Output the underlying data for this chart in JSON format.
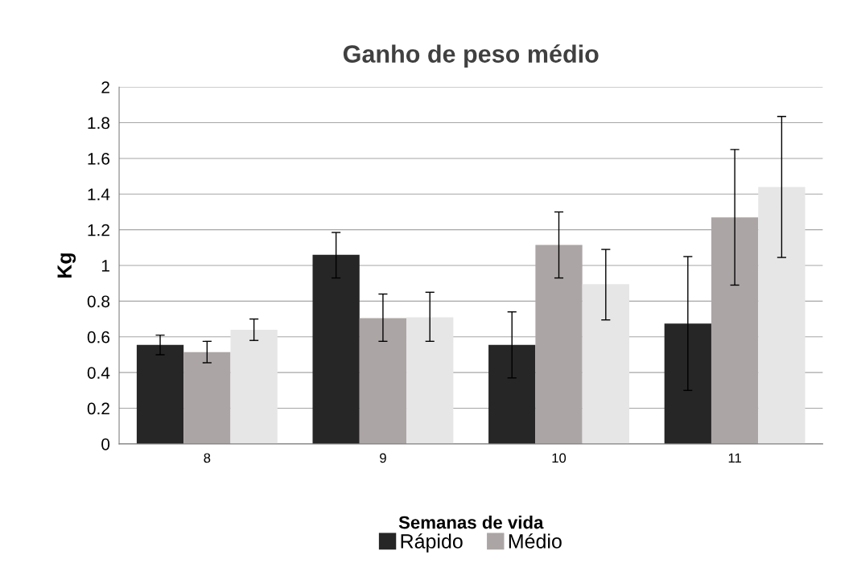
{
  "chart_data": {
    "type": "bar",
    "title": "Ganho de peso médio",
    "xlabel": "Semanas de vida",
    "ylabel": "Kg",
    "categories": [
      "8",
      "9",
      "10",
      "11"
    ],
    "series": [
      {
        "name": "Rápido",
        "color": "#262626",
        "values": [
          0.555,
          1.06,
          0.555,
          0.675
        ],
        "errors": [
          [
            0.5,
            0.61
          ],
          [
            0.93,
            1.185
          ],
          [
            0.37,
            0.74
          ],
          [
            0.3,
            1.05
          ]
        ]
      },
      {
        "name": "Médio",
        "color": "#aba6a5",
        "values": [
          0.515,
          0.705,
          1.115,
          1.27
        ],
        "errors": [
          [
            0.455,
            0.575
          ],
          [
            0.575,
            0.84
          ],
          [
            0.93,
            1.3
          ],
          [
            0.89,
            1.65
          ]
        ]
      },
      {
        "color": "#e6e6e6",
        "values": [
          0.64,
          0.71,
          0.895,
          1.44
        ],
        "errors": [
          [
            0.58,
            0.7
          ],
          [
            0.575,
            0.85
          ],
          [
            0.695,
            1.09
          ],
          [
            1.045,
            1.835
          ]
        ]
      }
    ],
    "ylim": [
      0,
      2
    ],
    "yticks": [
      0,
      0.2,
      0.4,
      0.6,
      0.8,
      1,
      1.2,
      1.4,
      1.6,
      1.8,
      2
    ],
    "grid": "y",
    "legend": "bottom"
  }
}
